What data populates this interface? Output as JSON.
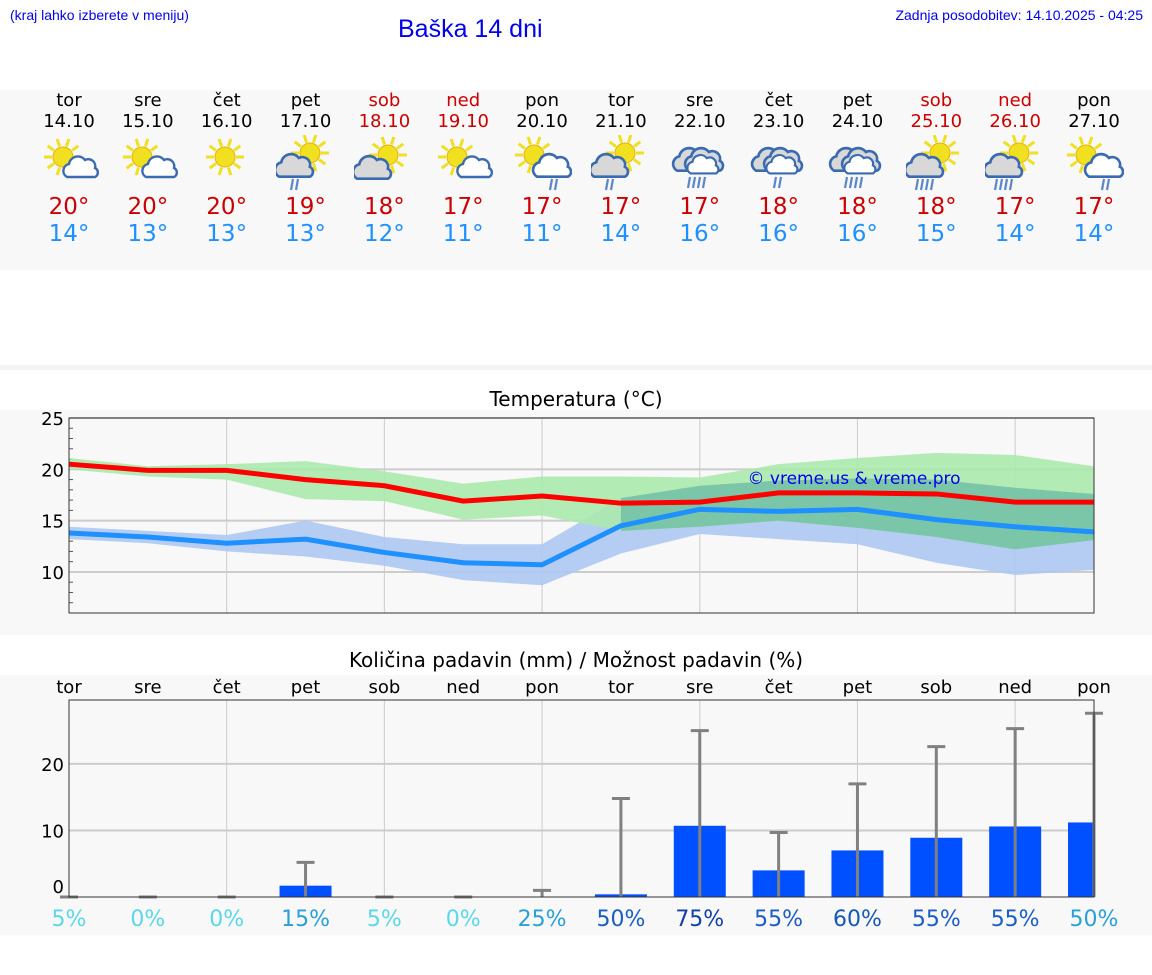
{
  "header": {
    "hint": "(kraj lahko izberete v meniju)",
    "title": "Baška 14 dni",
    "updated": "Zadnja posodobitev: 14.10.2025 - 04:25"
  },
  "days": [
    {
      "name": "tor",
      "date": "14.10",
      "weekend": false,
      "icon": "sun-cloud",
      "hi": "20°",
      "lo": "14°"
    },
    {
      "name": "sre",
      "date": "15.10",
      "weekend": false,
      "icon": "sun-cloud",
      "hi": "20°",
      "lo": "13°"
    },
    {
      "name": "čet",
      "date": "16.10",
      "weekend": false,
      "icon": "sun",
      "hi": "20°",
      "lo": "13°"
    },
    {
      "name": "pet",
      "date": "17.10",
      "weekend": false,
      "icon": "sun-grey-cloud-rain",
      "hi": "19°",
      "lo": "13°"
    },
    {
      "name": "sob",
      "date": "18.10",
      "weekend": true,
      "icon": "sun-grey-cloud",
      "hi": "18°",
      "lo": "12°"
    },
    {
      "name": "ned",
      "date": "19.10",
      "weekend": true,
      "icon": "sun-cloud",
      "hi": "17°",
      "lo": "11°"
    },
    {
      "name": "pon",
      "date": "20.10",
      "weekend": false,
      "icon": "sun-cloud-rain",
      "hi": "17°",
      "lo": "11°"
    },
    {
      "name": "tor",
      "date": "21.10",
      "weekend": false,
      "icon": "sun-grey-cloud-rain",
      "hi": "17°",
      "lo": "14°"
    },
    {
      "name": "sre",
      "date": "22.10",
      "weekend": false,
      "icon": "clouds-heavy-rain",
      "hi": "17°",
      "lo": "16°"
    },
    {
      "name": "čet",
      "date": "23.10",
      "weekend": false,
      "icon": "clouds-rain",
      "hi": "18°",
      "lo": "16°"
    },
    {
      "name": "pet",
      "date": "24.10",
      "weekend": false,
      "icon": "clouds-heavy-rain",
      "hi": "18°",
      "lo": "16°"
    },
    {
      "name": "sob",
      "date": "25.10",
      "weekend": true,
      "icon": "sun-grey-cloud-heavy-rain",
      "hi": "18°",
      "lo": "15°"
    },
    {
      "name": "ned",
      "date": "26.10",
      "weekend": true,
      "icon": "sun-grey-cloud-heavy-rain",
      "hi": "17°",
      "lo": "14°"
    },
    {
      "name": "pon",
      "date": "27.10",
      "weekend": false,
      "icon": "sun-cloud-rain",
      "hi": "17°",
      "lo": "14°"
    }
  ],
  "colors": {
    "hi": "#ff0000",
    "lo": "#1e90ff",
    "hiBand": "#abe9ad",
    "loBand": "#adc8f2",
    "overlap": "#7bc6a8",
    "bar": "#0050ff",
    "err": "#808080"
  },
  "chart_data": [
    {
      "type": "line",
      "title": "Temperatura (°C)",
      "watermark": "© vreme.us & vreme.pro",
      "ylim": [
        6,
        25
      ],
      "yticks": [
        10,
        15,
        20,
        25
      ],
      "ytick_labels": [
        "10",
        "15",
        "20",
        "25"
      ],
      "series": [
        {
          "name": "max",
          "values": [
            20.5,
            19.9,
            19.9,
            19.0,
            18.4,
            16.9,
            17.4,
            16.7,
            16.8,
            17.7,
            17.7,
            17.6,
            16.8,
            16.8
          ],
          "band_upper": [
            21.1,
            20.3,
            20.5,
            20.8,
            19.8,
            18.6,
            19.3,
            19.3,
            19.2,
            20.5,
            21.1,
            21.6,
            21.4,
            20.3
          ],
          "band_lower": [
            20.0,
            19.3,
            19.0,
            17.1,
            16.9,
            15.1,
            15.5,
            14.0,
            14.4,
            15.0,
            14.3,
            13.4,
            12.2,
            13.1
          ]
        },
        {
          "name": "min",
          "values": [
            13.8,
            13.4,
            12.8,
            13.2,
            11.9,
            10.9,
            10.7,
            14.5,
            16.1,
            15.9,
            16.1,
            15.1,
            14.4,
            13.9
          ],
          "band_upper": [
            14.4,
            14.0,
            13.6,
            15.0,
            13.4,
            12.7,
            12.7,
            17.2,
            18.4,
            18.9,
            19.1,
            19.0,
            18.2,
            17.6
          ],
          "band_lower": [
            13.2,
            12.8,
            12.0,
            11.5,
            10.6,
            9.2,
            8.7,
            11.8,
            13.7,
            13.2,
            12.7,
            10.9,
            9.7,
            10.2
          ]
        }
      ]
    },
    {
      "type": "bar",
      "title": "Količina padavin (mm) / Možnost padavin (%)",
      "categories": [
        "tor",
        "sre",
        "čet",
        "pet",
        "sob",
        "ned",
        "pon",
        "tor",
        "sre",
        "čet",
        "pet",
        "sob",
        "ned",
        "pon"
      ],
      "values": [
        0,
        0,
        0,
        1.7,
        0,
        0,
        0,
        0.4,
        10.7,
        4.0,
        7.0,
        8.9,
        10.6,
        11.2
      ],
      "error_max": [
        0,
        0,
        0,
        5.2,
        0,
        0,
        1.0,
        14.8,
        25.0,
        9.7,
        17.0,
        22.6,
        25.3,
        27.6
      ],
      "probability": [
        "5%",
        "0%",
        "0%",
        "15%",
        "5%",
        "0%",
        "25%",
        "50%",
        "75%",
        "55%",
        "60%",
        "55%",
        "55%",
        "50%"
      ],
      "prob_values": [
        5,
        0,
        0,
        15,
        5,
        0,
        25,
        50,
        75,
        55,
        60,
        55,
        55,
        50
      ],
      "ylim": [
        0,
        29.6
      ],
      "yticks": [
        0,
        10,
        20
      ],
      "ytick_labels": [
        "0",
        "10",
        "20"
      ]
    }
  ]
}
